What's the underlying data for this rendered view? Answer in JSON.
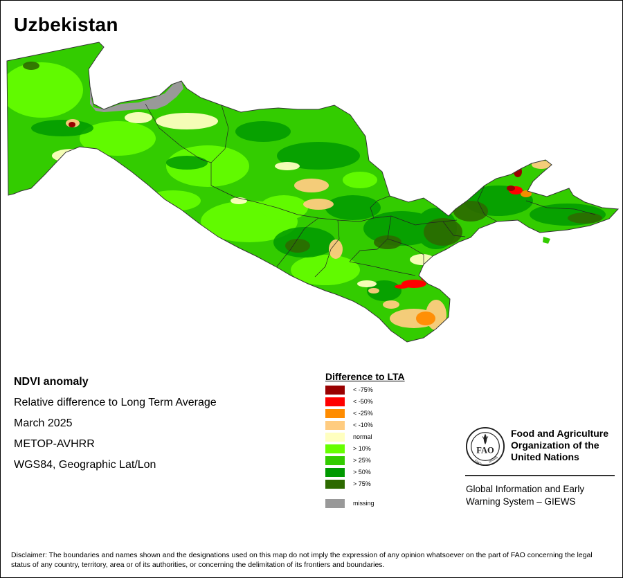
{
  "title": "Uzbekistan",
  "info": {
    "product": "NDVI anomaly",
    "description": "Relative difference to Long Term Average",
    "period": "March 2025",
    "sensor": "METOP-AVHRR",
    "projection": "WGS84, Geographic Lat/Lon"
  },
  "legend": {
    "title": "Difference to LTA",
    "items": [
      {
        "label": "< -75%",
        "color": "#990000"
      },
      {
        "label": "< -50%",
        "color": "#ff0000"
      },
      {
        "label": "< -25%",
        "color": "#ff8c00"
      },
      {
        "label": "< -10%",
        "color": "#ffcc80"
      },
      {
        "label": "normal",
        "color": "#ffffc0"
      },
      {
        "label": "> 10%",
        "color": "#66ff00"
      },
      {
        "label": "> 25%",
        "color": "#33cc00"
      },
      {
        "label": "> 50%",
        "color": "#009900"
      },
      {
        "label": "> 75%",
        "color": "#2d6a00"
      },
      {
        "label": "missing",
        "color": "#999999"
      }
    ]
  },
  "organization": {
    "name_line1": "Food and Agriculture",
    "name_line2": "Organization of the",
    "name_line3": "United Nations",
    "logo_text": "FAO",
    "logo_motto_left": "FIAT",
    "logo_motto_right": "PANIS",
    "system_line1": "Global Information and Early",
    "system_line2": "Warning System – GIEWS"
  },
  "disclaimer": "Disclaimer: The boundaries and names shown and the designations used on this map do not imply the expression of any opinion whatsoever on the part of FAO concerning the legal status of any country, territory, area or of its authorities, or concerning the delimitation of its frontiers and boundaries.",
  "colors": {
    "main_green": "#33cc00",
    "light_green": "#66ff00",
    "dark_green": "#009900",
    "darkest_green": "#2d6a00",
    "normal": "#ffffc0",
    "neg10": "#ffcc80",
    "neg25": "#ff8c00",
    "neg50": "#ff0000",
    "neg75": "#990000",
    "missing": "#999999"
  }
}
